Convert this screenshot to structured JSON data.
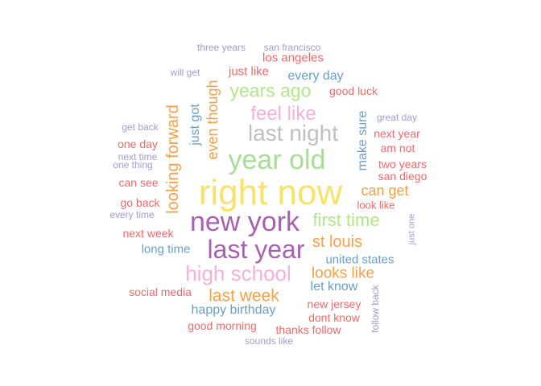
{
  "palette": {
    "red": "#f06a6a",
    "orange": "#f5a04a",
    "yellow": "#f7e36a",
    "green": "#b3e58a",
    "lightgreen": "#a9dc96",
    "blue": "#6a9ec9",
    "purple": "#a860b0",
    "lavender": "#a39bd0",
    "pink": "#f5b2d8",
    "gray": "#c0c0c0"
  },
  "words": [
    {
      "text": "right now",
      "color": "yellow"
    },
    {
      "text": "new york",
      "color": "purple"
    },
    {
      "text": "last year",
      "color": "purple"
    },
    {
      "text": "year old",
      "color": "lightgreen"
    },
    {
      "text": "last night",
      "color": "gray"
    },
    {
      "text": "high school",
      "color": "pink"
    },
    {
      "text": "feel like",
      "color": "pink"
    },
    {
      "text": "first time",
      "color": "green"
    },
    {
      "text": "years ago",
      "color": "green"
    },
    {
      "text": "looking forward",
      "color": "orange"
    },
    {
      "text": "last week",
      "color": "orange"
    },
    {
      "text": "st louis",
      "color": "orange"
    },
    {
      "text": "looks like",
      "color": "orange"
    },
    {
      "text": "can get",
      "color": "orange"
    },
    {
      "text": "even though",
      "color": "orange"
    },
    {
      "text": "every day",
      "color": "blue"
    },
    {
      "text": "make sure",
      "color": "blue"
    },
    {
      "text": "just got",
      "color": "blue"
    },
    {
      "text": "happy birthday",
      "color": "blue"
    },
    {
      "text": "let know",
      "color": "blue"
    },
    {
      "text": "united states",
      "color": "blue"
    },
    {
      "text": "long time",
      "color": "blue"
    },
    {
      "text": "los angeles",
      "color": "red"
    },
    {
      "text": "just like",
      "color": "red"
    },
    {
      "text": "good luck",
      "color": "red"
    },
    {
      "text": "next week",
      "color": "red"
    },
    {
      "text": "good morning",
      "color": "red"
    },
    {
      "text": "thanks follow",
      "color": "red"
    },
    {
      "text": "new jersey",
      "color": "red"
    },
    {
      "text": "dont know",
      "color": "red"
    },
    {
      "text": "next year",
      "color": "red"
    },
    {
      "text": "am not",
      "color": "red"
    },
    {
      "text": "two years",
      "color": "red"
    },
    {
      "text": "san diego",
      "color": "red"
    },
    {
      "text": "look like",
      "color": "red"
    },
    {
      "text": "social media",
      "color": "red"
    },
    {
      "text": "can see",
      "color": "red"
    },
    {
      "text": "go back",
      "color": "red"
    },
    {
      "text": "one day",
      "color": "red"
    },
    {
      "text": "three years",
      "color": "lavender"
    },
    {
      "text": "san francisco",
      "color": "lavender"
    },
    {
      "text": "will get",
      "color": "lavender"
    },
    {
      "text": "get back",
      "color": "lavender"
    },
    {
      "text": "next time",
      "color": "lavender"
    },
    {
      "text": "one thing",
      "color": "lavender"
    },
    {
      "text": "every time",
      "color": "lavender"
    },
    {
      "text": "great day",
      "color": "lavender"
    },
    {
      "text": "just one",
      "color": "lavender"
    },
    {
      "text": "follow back",
      "color": "lavender"
    },
    {
      "text": "sounds like",
      "color": "lavender"
    }
  ]
}
